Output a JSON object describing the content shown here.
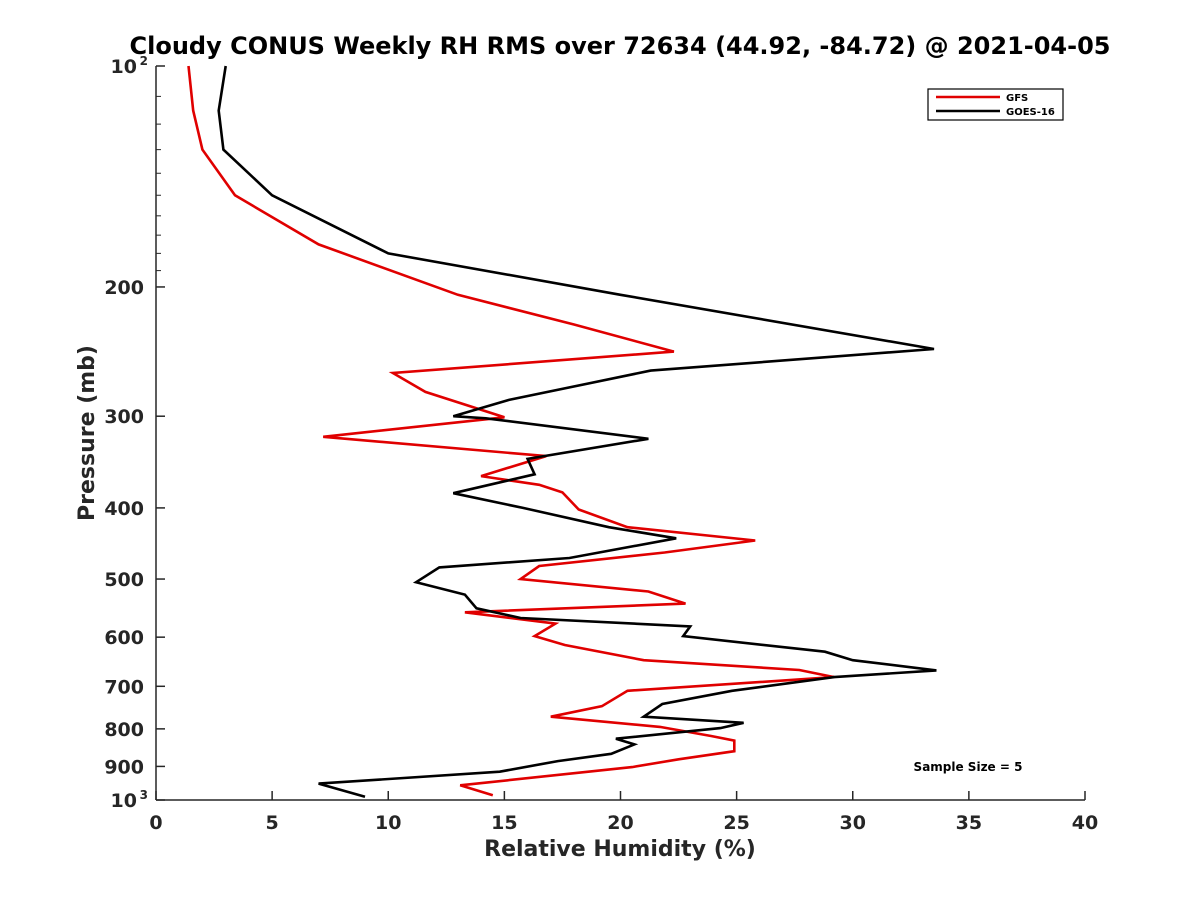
{
  "chart_data": {
    "type": "line",
    "title": "Cloudy CONUS Weekly RH RMS over 72634 (44.92, -84.72) @ 2021-04-05",
    "xlabel": "Relative Humidity (%)",
    "ylabel": "Pressure (mb)",
    "xlim": [
      0,
      40
    ],
    "ylim": [
      1000,
      100
    ],
    "y_scale": "log",
    "y_direction": "reversed",
    "grid": false,
    "legend_position": "top-right",
    "x_ticks": [
      "0",
      "5",
      "10",
      "15",
      "20",
      "25",
      "30",
      "35",
      "40"
    ],
    "y_ticks": [
      {
        "value": 100,
        "base": "10",
        "exp": "2"
      },
      {
        "value": 200,
        "base": "200",
        "exp": ""
      },
      {
        "value": 300,
        "base": "300",
        "exp": ""
      },
      {
        "value": 400,
        "base": "400",
        "exp": ""
      },
      {
        "value": 500,
        "base": "500",
        "exp": ""
      },
      {
        "value": 600,
        "base": "600",
        "exp": ""
      },
      {
        "value": 700,
        "base": "700",
        "exp": ""
      },
      {
        "value": 800,
        "base": "800",
        "exp": ""
      },
      {
        "value": 900,
        "base": "900",
        "exp": ""
      },
      {
        "value": 1000,
        "base": "10",
        "exp": "3"
      }
    ],
    "annotation": "Sample Size = 5",
    "series": [
      {
        "name": "GFS",
        "color": "#e00000",
        "points": [
          [
            1.4,
            100
          ],
          [
            1.6,
            115
          ],
          [
            2.0,
            130
          ],
          [
            3.4,
            150
          ],
          [
            7.0,
            175
          ],
          [
            13.0,
            205
          ],
          [
            18.0,
            225
          ],
          [
            22.3,
            245
          ],
          [
            10.2,
            262
          ],
          [
            11.6,
            278
          ],
          [
            15.0,
            301
          ],
          [
            7.2,
            320
          ],
          [
            16.8,
            340
          ],
          [
            14.0,
            362
          ],
          [
            16.5,
            372
          ],
          [
            17.5,
            381
          ],
          [
            18.2,
            402
          ],
          [
            20.3,
            425
          ],
          [
            25.8,
            443
          ],
          [
            21.9,
            460
          ],
          [
            16.5,
            480
          ],
          [
            15.7,
            500
          ],
          [
            21.2,
            520
          ],
          [
            22.8,
            540
          ],
          [
            13.3,
            555
          ],
          [
            17.2,
            575
          ],
          [
            16.3,
            598
          ],
          [
            17.6,
            615
          ],
          [
            21.0,
            645
          ],
          [
            27.7,
            665
          ],
          [
            29.2,
            680
          ],
          [
            20.3,
            710
          ],
          [
            19.2,
            745
          ],
          [
            17.0,
            770
          ],
          [
            21.7,
            795
          ],
          [
            23.9,
            818
          ],
          [
            24.9,
            830
          ],
          [
            24.9,
            858
          ],
          [
            22.5,
            880
          ],
          [
            20.5,
            902
          ],
          [
            13.1,
            955
          ],
          [
            14.5,
            985
          ]
        ]
      },
      {
        "name": "GOES-16",
        "color": "#000000",
        "points": [
          [
            3.0,
            100
          ],
          [
            2.7,
            115
          ],
          [
            2.9,
            130
          ],
          [
            5.0,
            150
          ],
          [
            10.0,
            180
          ],
          [
            20.0,
            205
          ],
          [
            33.5,
            243
          ],
          [
            21.3,
            260
          ],
          [
            15.2,
            285
          ],
          [
            12.8,
            300
          ],
          [
            14.2,
            302
          ],
          [
            21.2,
            322
          ],
          [
            16.0,
            343
          ],
          [
            16.3,
            360
          ],
          [
            12.8,
            382
          ],
          [
            15.8,
            400
          ],
          [
            19.5,
            425
          ],
          [
            22.4,
            440
          ],
          [
            17.8,
            468
          ],
          [
            12.2,
            482
          ],
          [
            11.2,
            505
          ],
          [
            13.3,
            525
          ],
          [
            13.8,
            548
          ],
          [
            15.7,
            565
          ],
          [
            23.0,
            580
          ],
          [
            22.7,
            598
          ],
          [
            28.8,
            628
          ],
          [
            30.0,
            645
          ],
          [
            33.6,
            666
          ],
          [
            29.2,
            680
          ],
          [
            24.8,
            710
          ],
          [
            21.8,
            740
          ],
          [
            21.0,
            770
          ],
          [
            25.3,
            785
          ],
          [
            24.3,
            798
          ],
          [
            19.8,
            825
          ],
          [
            20.6,
            840
          ],
          [
            19.6,
            865
          ],
          [
            17.3,
            885
          ],
          [
            14.8,
            915
          ],
          [
            7.0,
            950
          ],
          [
            9.0,
            990
          ]
        ]
      }
    ]
  }
}
